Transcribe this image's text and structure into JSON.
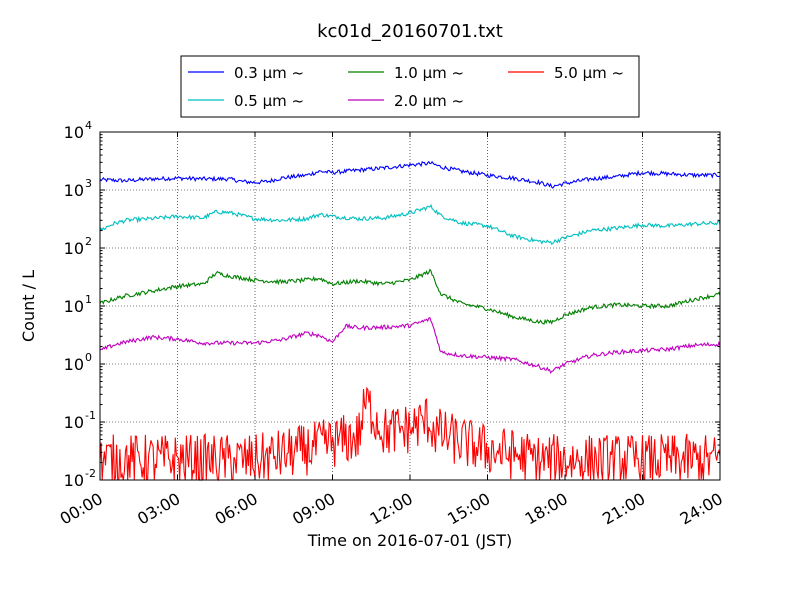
{
  "chart_data": {
    "type": "line",
    "title": "kc01d_20160701.txt",
    "xlabel": "Time on 2016-07-01 (JST)",
    "ylabel": "Count / L",
    "x_range": [
      "00:00",
      "24:00"
    ],
    "x_ticks": [
      "00:00",
      "03:00",
      "06:00",
      "09:00",
      "12:00",
      "15:00",
      "18:00",
      "21:00",
      "24:00"
    ],
    "y_scale": "log",
    "ylim": [
      0.01,
      10000
    ],
    "y_ticks": [
      {
        "base": "10",
        "exp": "-2"
      },
      {
        "base": "10",
        "exp": "-1"
      },
      {
        "base": "10",
        "exp": "0"
      },
      {
        "base": "10",
        "exp": "1"
      },
      {
        "base": "10",
        "exp": "2"
      },
      {
        "base": "10",
        "exp": "3"
      },
      {
        "base": "10",
        "exp": "4"
      }
    ],
    "grid": true,
    "legend_position": "top (above plot area)",
    "series": [
      {
        "name": "0.3 µm ~",
        "color": "#0000ff",
        "x": [
          0,
          1,
          2,
          3,
          4,
          5,
          5.5,
          6,
          6.5,
          7,
          8,
          8.5,
          9,
          10,
          11,
          12,
          12.8,
          13.2,
          14,
          15,
          16,
          17,
          17.5,
          18,
          19,
          20,
          21,
          22,
          23,
          24
        ],
        "values": [
          1500,
          1450,
          1550,
          1600,
          1550,
          1550,
          1400,
          1350,
          1400,
          1600,
          1800,
          2100,
          2000,
          2200,
          2400,
          2700,
          2900,
          2500,
          2100,
          1800,
          1600,
          1350,
          1150,
          1300,
          1550,
          1700,
          2000,
          1900,
          1800,
          1800
        ]
      },
      {
        "name": "0.5 µm ~",
        "color": "#00bfbf",
        "x": [
          0,
          0.5,
          1,
          2,
          3,
          4,
          4.5,
          5,
          6,
          7,
          8,
          8.5,
          9,
          10,
          11,
          12,
          12.8,
          13.2,
          14,
          15,
          16,
          17,
          17.5,
          18,
          19,
          20,
          21,
          22,
          23,
          24
        ],
        "values": [
          200,
          260,
          300,
          320,
          350,
          330,
          420,
          410,
          320,
          300,
          320,
          380,
          350,
          320,
          330,
          400,
          520,
          360,
          270,
          240,
          160,
          130,
          125,
          150,
          200,
          220,
          250,
          240,
          260,
          270
        ]
      },
      {
        "name": "1.0 µm ~",
        "color": "#008000",
        "x": [
          0,
          0.5,
          1,
          2,
          3,
          4,
          4.5,
          5,
          6,
          7,
          8,
          8.5,
          9,
          10,
          11,
          12,
          12.8,
          13.2,
          14,
          15,
          16,
          17,
          17.5,
          18,
          19,
          20,
          21,
          22,
          23,
          24
        ],
        "values": [
          11,
          13,
          15,
          18,
          22,
          24,
          37,
          33,
          28,
          26,
          28,
          30,
          24,
          27,
          24,
          28,
          40,
          16,
          11,
          9,
          6.5,
          5.3,
          5.3,
          7,
          9.5,
          10.5,
          10,
          10,
          13,
          16
        ]
      },
      {
        "name": "2.0 µm ~",
        "color": "#bf00bf",
        "x": [
          0,
          0.5,
          1,
          2,
          3,
          4,
          5,
          6,
          7,
          8,
          8.5,
          9,
          9.5,
          10,
          11,
          12,
          12.8,
          13.2,
          14,
          15,
          16,
          17,
          17.5,
          18,
          19,
          20,
          21,
          22,
          23,
          24
        ],
        "values": [
          1.7,
          2.1,
          2.4,
          2.9,
          2.7,
          2.3,
          2.3,
          2.3,
          2.6,
          3.4,
          3.1,
          2.4,
          4.5,
          4.2,
          4.3,
          4.6,
          6,
          1.6,
          1.4,
          1.3,
          1.2,
          0.9,
          0.75,
          1.0,
          1.4,
          1.6,
          1.7,
          1.8,
          2.1,
          2.2
        ]
      },
      {
        "name": "5.0 µm ~",
        "color": "#ff0000",
        "x": [
          0,
          2,
          4,
          6,
          8,
          9,
          10,
          10.3,
          11,
          12,
          12.7,
          13,
          14,
          15,
          16,
          17,
          18,
          19,
          20,
          21,
          22,
          23,
          24
        ],
        "values": [
          0.02,
          0.02,
          0.02,
          0.02,
          0.03,
          0.04,
          0.05,
          0.2,
          0.06,
          0.07,
          0.1,
          0.06,
          0.04,
          0.03,
          0.025,
          0.02,
          0.02,
          0.02,
          0.02,
          0.02,
          0.02,
          0.02,
          0.02
        ],
        "noisy": true
      }
    ]
  }
}
